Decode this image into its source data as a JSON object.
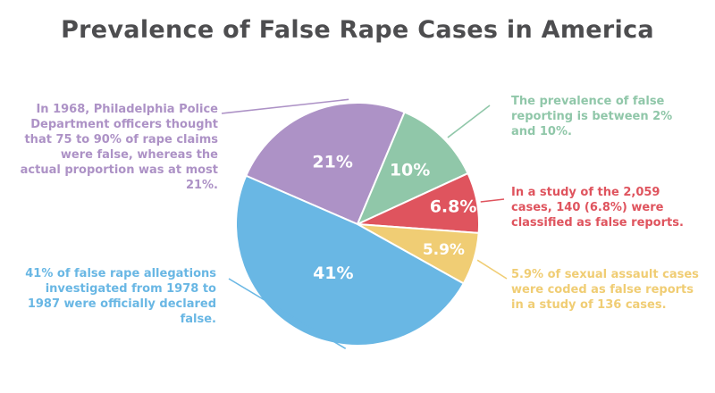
{
  "chart_data": {
    "type": "pie",
    "title": "Prevalence of False Rape Cases in America",
    "categories": [
      "21%",
      "10%",
      "6.8%",
      "5.9%",
      "41%"
    ],
    "values": [
      21,
      10,
      6.8,
      5.9,
      41
    ],
    "slices": [
      {
        "label": "21%",
        "value": 21,
        "color": "#ad92c6",
        "note": "In 1968, Philadelphia Police Department officers thought that 75 to 90% of rape claims were false, whereas the actual proportion was at most 21%."
      },
      {
        "label": "10%",
        "value": 10,
        "color": "#90c7a9",
        "note": "The prevalence of false reporting is between 2% and 10%."
      },
      {
        "label": "6.8%",
        "value": 6.8,
        "color": "#df545e",
        "note": "In a study of the 2,059 cases, 140 (6.8%) were classified as false reports."
      },
      {
        "label": "5.9%",
        "value": 5.9,
        "color": "#f0cd74",
        "note": "5.9% of sexual assault cases were coded as false reports in a study of 136 cases."
      },
      {
        "label": "41%",
        "value": 41,
        "color": "#69b7e4",
        "note": "41% of false rape allegations investigated from 1978 to 1987 were officially declared false."
      }
    ]
  },
  "colors": {
    "title": "#4d4d4f",
    "background": "#ffffff"
  }
}
